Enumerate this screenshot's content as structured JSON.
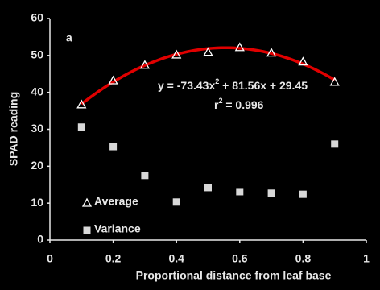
{
  "chart_data": {
    "type": "scatter",
    "panel_label": "a",
    "x_label": "Proportional distance from leaf base",
    "y_label": "SPAD reading",
    "x": [
      0.1,
      0.2,
      0.3,
      0.4,
      0.5,
      0.6,
      0.7,
      0.8,
      0.9
    ],
    "series": [
      {
        "name": "Average",
        "marker": "triangle",
        "color": "#ffffff",
        "values": [
          36.7,
          43.2,
          47.4,
          50.2,
          50.9,
          52.2,
          50.7,
          48.3,
          42.8
        ]
      },
      {
        "name": "Variance",
        "marker": "square",
        "color": "#d8d8d8",
        "values": [
          30.6,
          25.3,
          17.5,
          10.3,
          14.2,
          13.1,
          12.7,
          12.4,
          26.0
        ]
      }
    ],
    "fit": {
      "coefficients": [
        -73.43,
        81.56,
        29.45
      ],
      "xrange": [
        0.1,
        0.9
      ],
      "color": "#e00000"
    },
    "equation": [
      "y = -73.43x",
      "2",
      " + 81.56x + 29.45"
    ],
    "r_squared": [
      "r",
      "2",
      " = 0.996"
    ],
    "xlim": [
      0,
      1
    ],
    "xticks": [
      0,
      0.2,
      0.4,
      0.6,
      0.8,
      1
    ],
    "ylim": [
      0,
      60
    ],
    "yticks": [
      0,
      10,
      20,
      30,
      40,
      50,
      60
    ],
    "grid": false
  }
}
